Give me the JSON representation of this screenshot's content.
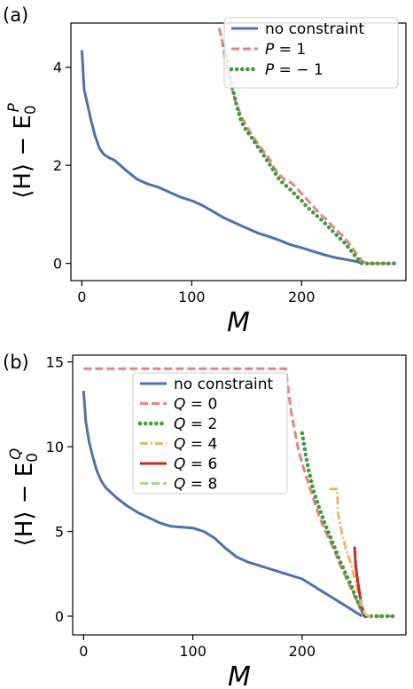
{
  "figure": {
    "panel_labels": [
      "(a)",
      "(b)"
    ]
  },
  "chart_data": [
    {
      "type": "line",
      "panel": "(a)",
      "xlabel": "M",
      "ylabel_main": "⟨H⟩ − E",
      "ylabel_sub": "0",
      "ylabel_sup": "P",
      "xlim": [
        -10,
        295
      ],
      "ylim": [
        -0.35,
        4.9
      ],
      "xticks": [
        0,
        100,
        200
      ],
      "yticks": [
        0,
        2,
        4
      ],
      "legend_loc": "upper right",
      "grid": false,
      "series": [
        {
          "name": "no constraint",
          "color": "#4a72b0",
          "style": "solid",
          "x": [
            0,
            2,
            5,
            8,
            12,
            16,
            20,
            25,
            30,
            40,
            50,
            60,
            70,
            80,
            90,
            100,
            110,
            120,
            130,
            140,
            150,
            160,
            170,
            180,
            190,
            200,
            210,
            220,
            230,
            240,
            250,
            255
          ],
          "y": [
            4.35,
            3.55,
            3.25,
            2.95,
            2.6,
            2.35,
            2.22,
            2.15,
            2.1,
            1.9,
            1.72,
            1.62,
            1.55,
            1.45,
            1.35,
            1.28,
            1.18,
            1.05,
            0.92,
            0.82,
            0.72,
            0.62,
            0.55,
            0.47,
            0.38,
            0.32,
            0.25,
            0.18,
            0.12,
            0.08,
            0.04,
            0.0
          ]
        },
        {
          "name": "P = 1",
          "color": "#f08080",
          "style": "dashed",
          "x": [
            125,
            128,
            130,
            133,
            136,
            140,
            145,
            150,
            155,
            160,
            165,
            170,
            175,
            180,
            185,
            190,
            195,
            200,
            205,
            210,
            215,
            220,
            230,
            240,
            250,
            255,
            260,
            270,
            280,
            285
          ],
          "y": [
            4.8,
            4.5,
            4.2,
            3.9,
            3.6,
            3.3,
            3.0,
            2.8,
            2.6,
            2.45,
            2.3,
            2.15,
            1.95,
            1.8,
            1.7,
            1.65,
            1.55,
            1.42,
            1.3,
            1.18,
            1.05,
            0.95,
            0.72,
            0.5,
            0.2,
            0.05,
            0.0,
            0.0,
            0.0,
            0.0
          ]
        },
        {
          "name": "P = − 1",
          "color": "#3a9d3a",
          "style": "dotted",
          "x": [
            130,
            133,
            136,
            140,
            145,
            150,
            155,
            160,
            165,
            170,
            175,
            180,
            185,
            190,
            195,
            200,
            205,
            210,
            215,
            220,
            230,
            240,
            250,
            255,
            260,
            270,
            280,
            285
          ],
          "y": [
            4.45,
            4.05,
            3.7,
            3.3,
            2.9,
            2.7,
            2.55,
            2.38,
            2.22,
            2.05,
            1.88,
            1.7,
            1.6,
            1.5,
            1.38,
            1.28,
            1.15,
            1.05,
            0.95,
            0.85,
            0.62,
            0.4,
            0.12,
            0.0,
            0.0,
            0.0,
            0.0,
            0.0
          ]
        }
      ]
    },
    {
      "type": "line",
      "panel": "(b)",
      "xlabel": "M",
      "ylabel_main": "⟨H⟩ − E",
      "ylabel_sub": "0",
      "ylabel_sup": "Q",
      "xlim": [
        -10,
        295
      ],
      "ylim": [
        -1.1,
        15.4
      ],
      "xticks": [
        0,
        100,
        200
      ],
      "yticks": [
        0,
        5,
        10,
        15
      ],
      "legend_loc": "upper center",
      "grid": false,
      "series": [
        {
          "name": "no constraint",
          "color": "#4a72b0",
          "style": "solid",
          "x": [
            0,
            2,
            5,
            8,
            12,
            16,
            20,
            25,
            30,
            40,
            50,
            60,
            70,
            80,
            90,
            100,
            110,
            120,
            130,
            140,
            150,
            160,
            170,
            180,
            190,
            200,
            210,
            220,
            230,
            240,
            250,
            255
          ],
          "y": [
            13.3,
            11.5,
            10.3,
            9.5,
            8.6,
            8.0,
            7.6,
            7.3,
            7.0,
            6.5,
            6.1,
            5.8,
            5.5,
            5.3,
            5.25,
            5.2,
            5.0,
            4.6,
            4.0,
            3.5,
            3.2,
            3.0,
            2.8,
            2.6,
            2.4,
            2.2,
            1.8,
            1.4,
            1.0,
            0.6,
            0.2,
            0.0
          ]
        },
        {
          "name": "Q = 0",
          "color": "#f08080",
          "style": "dashed",
          "x": [
            0,
            185,
            187,
            190,
            193,
            196,
            200,
            205,
            210,
            215,
            220,
            225,
            230,
            235,
            240,
            245,
            250,
            255,
            260,
            270,
            280,
            285
          ],
          "y": [
            14.6,
            14.6,
            13.5,
            12.0,
            11.0,
            10.0,
            9.0,
            8.0,
            7.0,
            6.0,
            5.2,
            4.5,
            3.8,
            3.0,
            2.3,
            1.6,
            0.9,
            0.2,
            0.0,
            0.0,
            0.0,
            0.0
          ]
        },
        {
          "name": "Q = 2",
          "color": "#3a9d3a",
          "style": "dotted",
          "x": [
            200,
            203,
            206,
            210,
            215,
            220,
            225,
            230,
            235,
            240,
            245,
            250,
            255,
            258,
            262,
            270,
            280,
            285
          ],
          "y": [
            10.8,
            9.6,
            8.6,
            7.5,
            6.5,
            5.6,
            4.8,
            4.0,
            3.2,
            2.5,
            1.8,
            1.0,
            0.3,
            0.0,
            0.0,
            0.0,
            0.0,
            0.0
          ]
        },
        {
          "name": "Q = 4",
          "color": "#f5b35c",
          "style": "dashdot",
          "x": [
            225,
            232,
            233,
            236,
            240,
            245,
            250,
            255,
            258,
            265
          ],
          "y": [
            7.5,
            7.5,
            6.0,
            5.0,
            4.0,
            3.0,
            1.8,
            0.5,
            0.0,
            0.0
          ]
        },
        {
          "name": "Q = 6",
          "color": "#c62828",
          "style": "solid",
          "x": [
            248,
            249,
            251,
            253,
            255,
            257,
            260
          ],
          "y": [
            4.1,
            3.0,
            2.0,
            1.2,
            0.5,
            0.0,
            0.0
          ]
        },
        {
          "name": "Q = 8",
          "color": "#a8d88a",
          "style": "dashed",
          "x": [
            253,
            255,
            257,
            260
          ],
          "y": [
            1.0,
            0.6,
            0.2,
            0.0
          ]
        }
      ]
    }
  ]
}
